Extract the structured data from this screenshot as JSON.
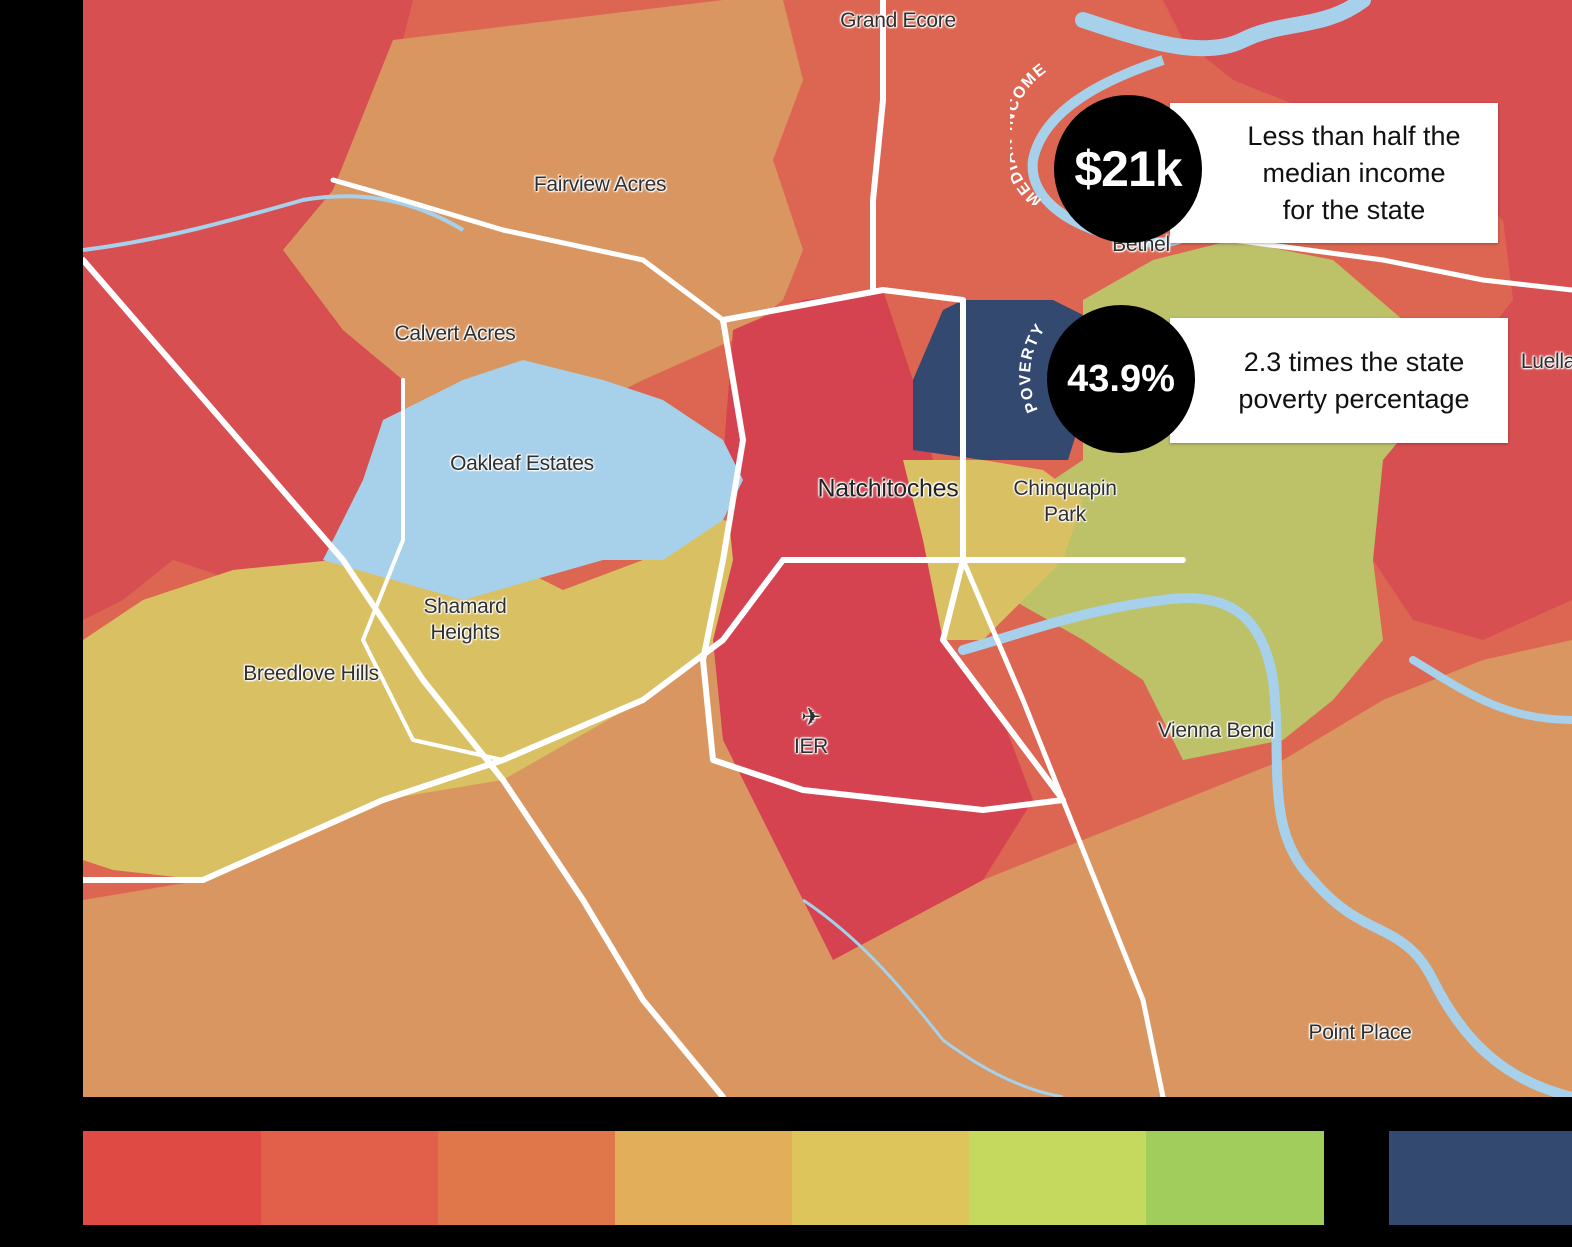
{
  "places": [
    {
      "id": "grand-ecore",
      "label": "Grand Ecore"
    },
    {
      "id": "fairview-acres",
      "label": "Fairview Acres"
    },
    {
      "id": "calvert-acres",
      "label": "Calvert Acres"
    },
    {
      "id": "oakleaf-estates",
      "label": "Oakleaf Estates"
    },
    {
      "id": "natchitoches",
      "label": "Natchitoches"
    },
    {
      "id": "chinquapin-park",
      "label": "Chinquapin\nPark"
    },
    {
      "id": "shamard-heights",
      "label": "Shamard\nHeights"
    },
    {
      "id": "breedlove-hills",
      "label": "Breedlove Hills"
    },
    {
      "id": "bethel",
      "label": "Bethel"
    },
    {
      "id": "luella",
      "label": "Luella"
    },
    {
      "id": "vienna-bend",
      "label": "Vienna Bend"
    },
    {
      "id": "point-place",
      "label": "Point Place"
    },
    {
      "id": "ier",
      "label": "IER"
    }
  ],
  "callouts": {
    "income": {
      "arc_label": "MEDIAN INCOME",
      "value": "$21k",
      "text_lines": [
        "Less than half the",
        "median income",
        "for the state"
      ]
    },
    "poverty": {
      "arc_label": "POVERTY",
      "value": "43.9%",
      "text_lines": [
        "2.3 times the state",
        "poverty percentage"
      ]
    }
  },
  "legend": {
    "scale_colors": [
      "#df4a44",
      "#e25f49",
      "#e0774b",
      "#e3ae5a",
      "#dec55b",
      "#c6d95f",
      "#a1cd5d"
    ],
    "highlight_color": "#33496f"
  },
  "colors": {
    "zone_red": "#d84f52",
    "zone_red_orange": "#dd6652",
    "zone_orange": "#d99660",
    "zone_dark_red": "#d64350",
    "zone_yellow": "#d9c063",
    "zone_olive": "#bdc168",
    "zone_navy": "#33496f",
    "water": "#a7d0ea"
  }
}
